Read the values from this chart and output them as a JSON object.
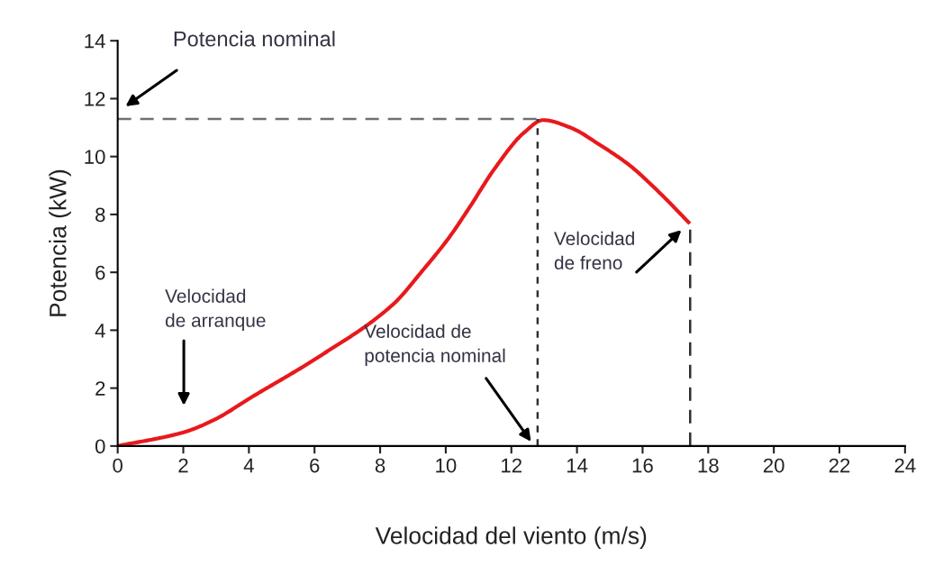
{
  "chart_data": {
    "type": "line",
    "xlabel": "Velocidad del viento (m/s)",
    "ylabel": "Potencia (kW)",
    "x": [
      0,
      2.0,
      2.9,
      4.1,
      6.1,
      8.4,
      9.3,
      10.1,
      10.7,
      11.5,
      12.4,
      12.97,
      13.8,
      14.7,
      15.6,
      16.5,
      17.4
    ],
    "series": [
      {
        "color": "#e8191c",
        "values": [
          0,
          0.47,
          0.88,
          1.7,
          3.06,
          4.9,
          6.07,
          7.2,
          8.2,
          9.6,
          10.84,
          11.26,
          11.0,
          10.4,
          9.7,
          8.77,
          7.73
        ]
      }
    ],
    "xlim": [
      0,
      24
    ],
    "xticks": [
      0,
      2,
      4,
      6,
      8,
      10,
      12,
      14,
      16,
      18,
      20,
      22,
      24
    ],
    "ylim": [
      0,
      14
    ],
    "yticks": [
      0,
      2,
      4,
      6,
      8,
      10,
      12,
      14
    ],
    "ref_lines": [
      {
        "axis": "y",
        "value": 11.3,
        "color": "#707070",
        "line_style": "dashed"
      },
      {
        "axis": "x",
        "value": 12.8,
        "color": "#303030",
        "line_style": "dotted"
      },
      {
        "axis": "x",
        "value": 17.45,
        "color": "#303030",
        "line_style": "dashed"
      }
    ],
    "annotations": [
      "Potencia nominal",
      "Velocidad\nde arranque",
      "Velocidad de\npotencia nominal",
      "Velocidad\nde freno"
    ],
    "grid": false,
    "marker": "none",
    "line_style": "solid"
  }
}
